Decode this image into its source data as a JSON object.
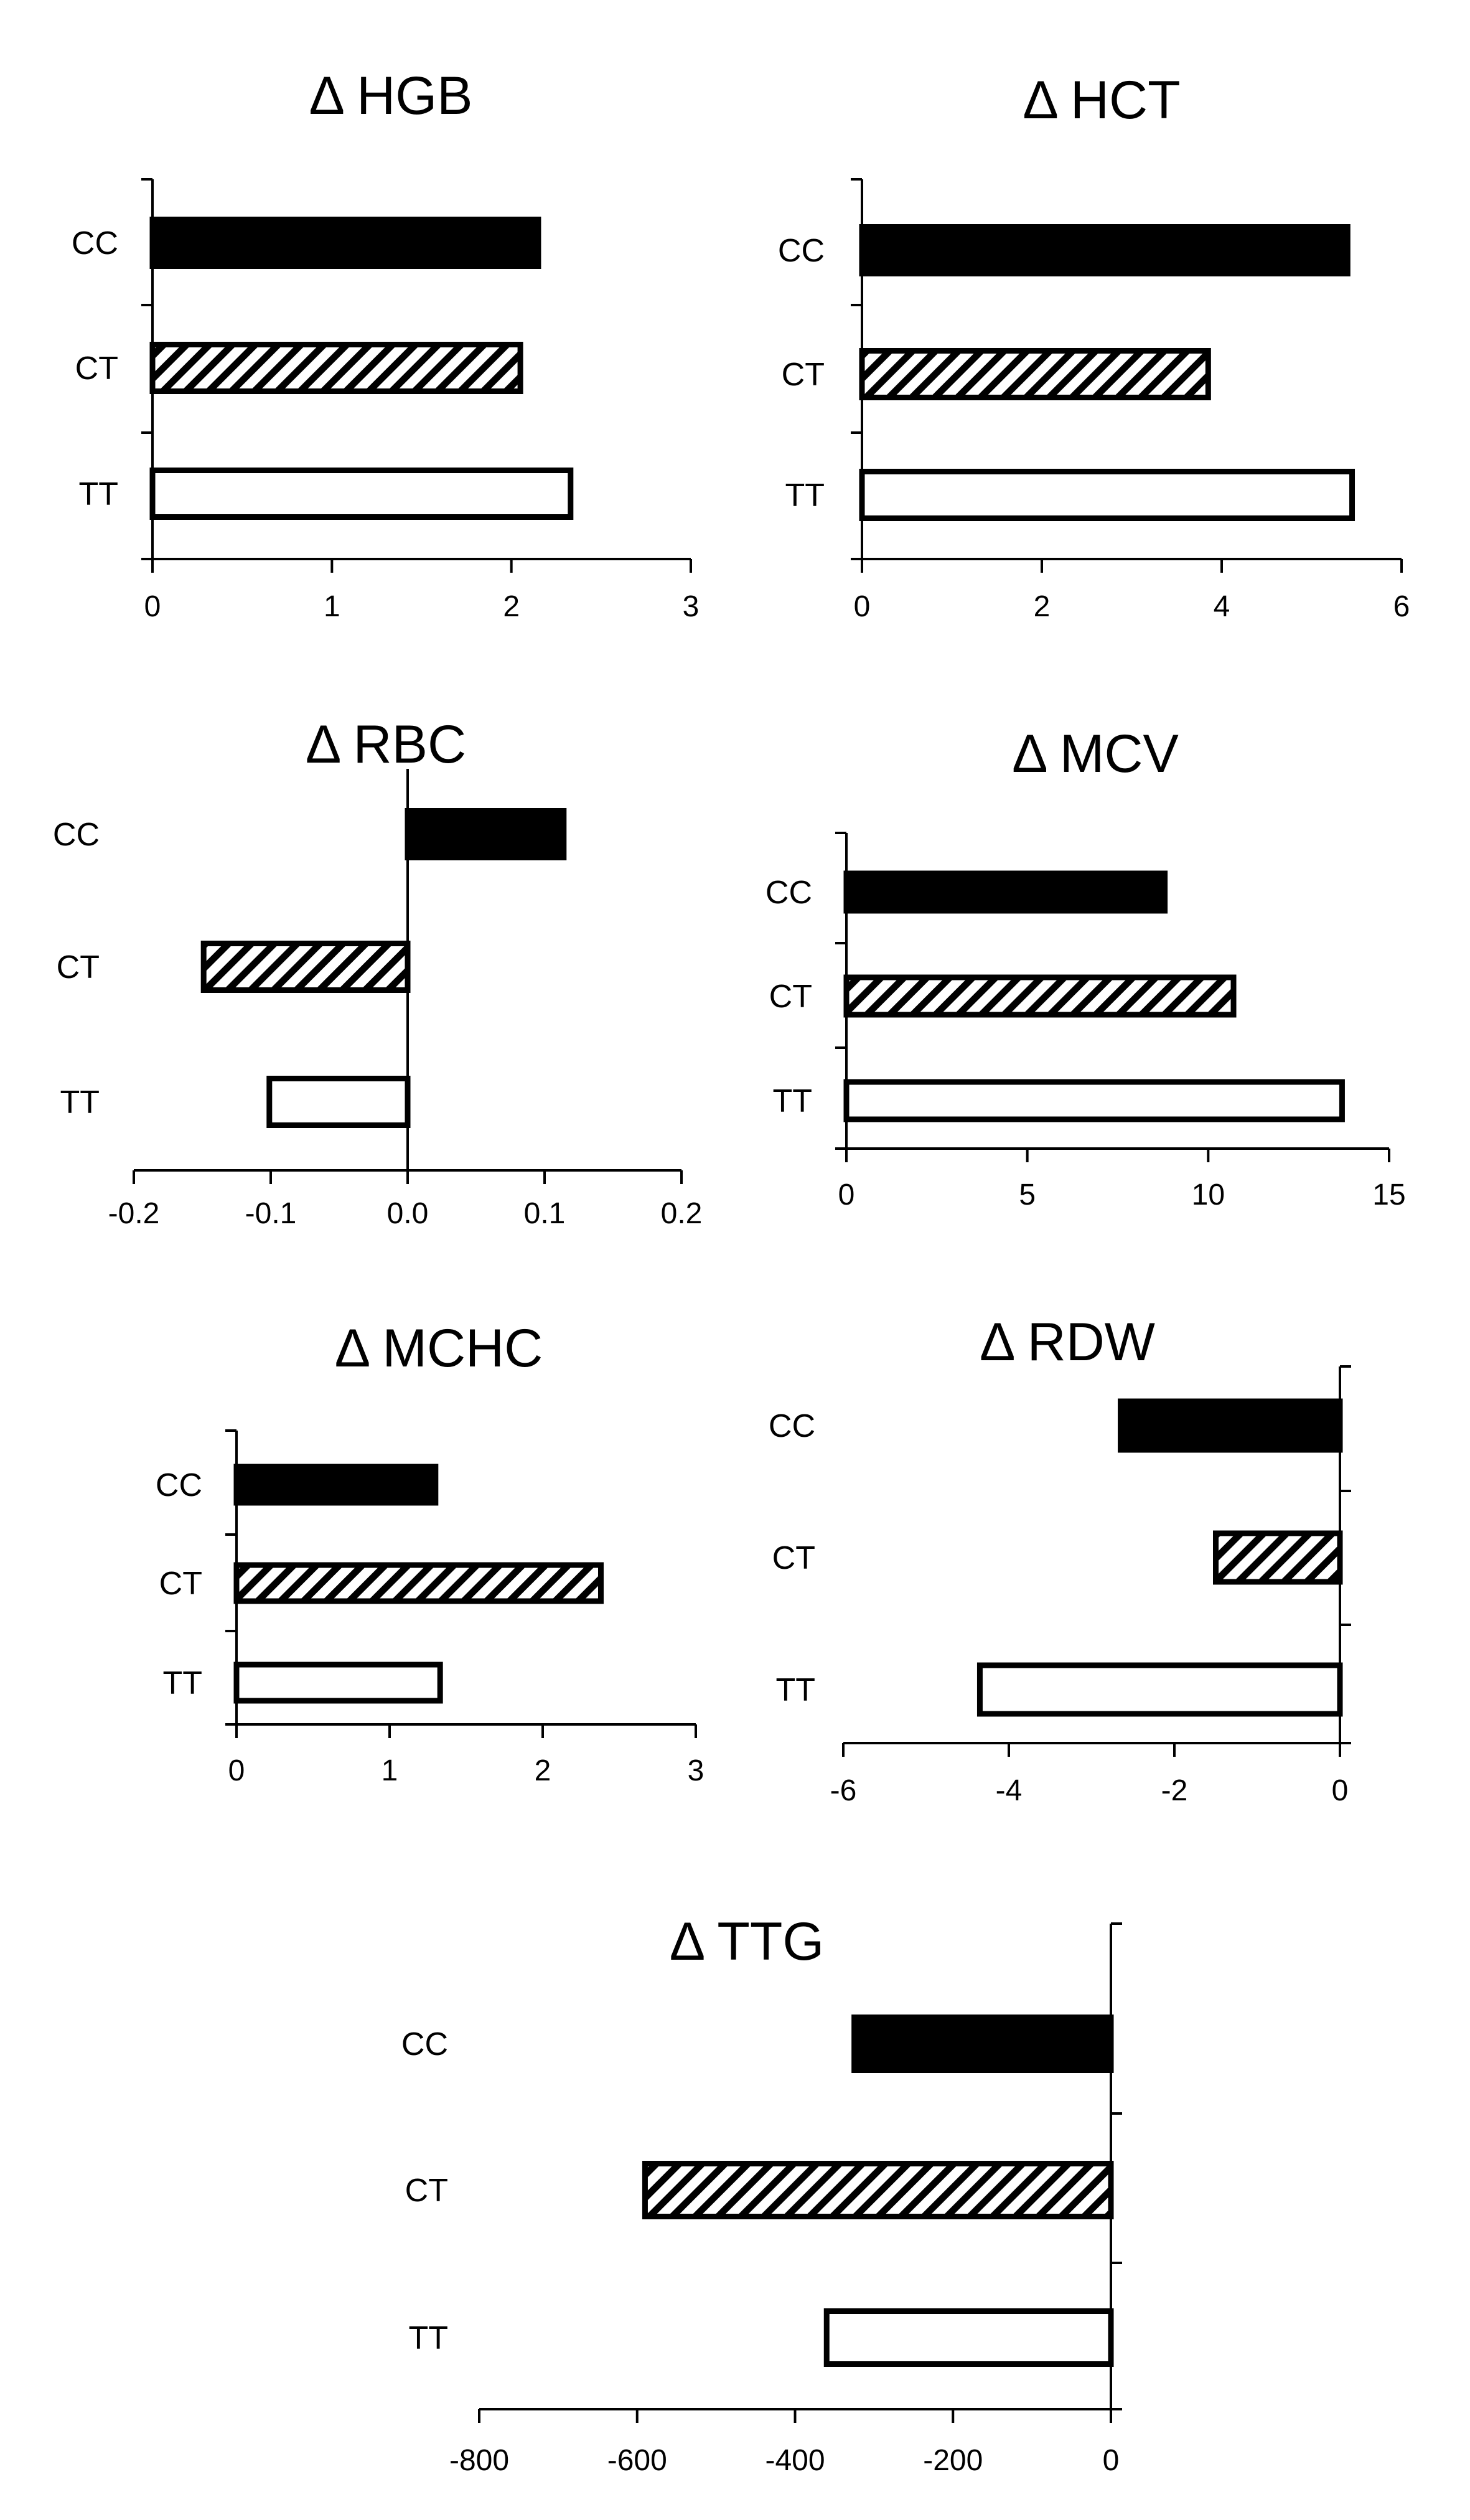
{
  "colors": {
    "bar_fill": "#000000",
    "bar_stroke": "#000000",
    "open_fill": "#ffffff",
    "background": "#ffffff"
  },
  "chart_data": [
    {
      "type": "bar",
      "orientation": "horizontal",
      "title": "Δ HGB",
      "categories": [
        "CC",
        "CT",
        "TT"
      ],
      "values": [
        2.15,
        2.05,
        2.33
      ],
      "fills": [
        "solid",
        "hatched",
        "open"
      ],
      "xlim": [
        0,
        3
      ],
      "xticks": [
        "0",
        "1",
        "2",
        "3"
      ],
      "grid": false
    },
    {
      "type": "bar",
      "orientation": "horizontal",
      "title": "Δ HCT",
      "categories": [
        "CC",
        "CT",
        "TT"
      ],
      "values": [
        5.4,
        3.85,
        5.45
      ],
      "fills": [
        "solid",
        "hatched",
        "open"
      ],
      "xlim": [
        0,
        6
      ],
      "xticks": [
        "0",
        "2",
        "4",
        "6"
      ],
      "grid": false
    },
    {
      "type": "bar",
      "orientation": "horizontal",
      "title": "Δ RBC",
      "categories": [
        "CC",
        "CT",
        "TT"
      ],
      "values": [
        0.114,
        -0.149,
        -0.101
      ],
      "fills": [
        "solid",
        "hatched",
        "open"
      ],
      "xlim": [
        -0.2,
        0.2
      ],
      "xticks": [
        "-0.2",
        "-0.1",
        "0.0",
        "0.1",
        "0.2"
      ],
      "grid": false
    },
    {
      "type": "bar",
      "orientation": "horizontal",
      "title": "Δ MCV",
      "categories": [
        "CC",
        "CT",
        "TT"
      ],
      "values": [
        8.8,
        10.7,
        13.7
      ],
      "fills": [
        "solid",
        "hatched",
        "open"
      ],
      "xlim": [
        0,
        15
      ],
      "xticks": [
        "0",
        "5",
        "10",
        "15"
      ],
      "grid": false
    },
    {
      "type": "bar",
      "orientation": "horizontal",
      "title": "Δ MCHC",
      "categories": [
        "CC",
        "CT",
        "TT"
      ],
      "values": [
        1.3,
        2.38,
        1.33
      ],
      "fills": [
        "solid",
        "hatched",
        "open"
      ],
      "xlim": [
        0,
        3
      ],
      "xticks": [
        "0",
        "1",
        "2",
        "3"
      ],
      "grid": false
    },
    {
      "type": "bar",
      "orientation": "horizontal",
      "title": "Δ RDW",
      "categories": [
        "CC",
        "CT",
        "TT"
      ],
      "values": [
        -2.65,
        -1.5,
        -4.35
      ],
      "fills": [
        "solid",
        "hatched",
        "open"
      ],
      "xlim": [
        -6,
        0
      ],
      "xticks": [
        "-6",
        "-4",
        "-2",
        "0"
      ],
      "grid": false
    },
    {
      "type": "bar",
      "orientation": "horizontal",
      "title": "Δ TTG",
      "categories": [
        "CC",
        "CT",
        "TT"
      ],
      "values": [
        -325,
        -590,
        -360
      ],
      "fills": [
        "solid",
        "hatched",
        "open"
      ],
      "xlim": [
        -800,
        0
      ],
      "xticks": [
        "-800",
        "-600",
        "-400",
        "-200",
        "0"
      ],
      "grid": false
    }
  ]
}
